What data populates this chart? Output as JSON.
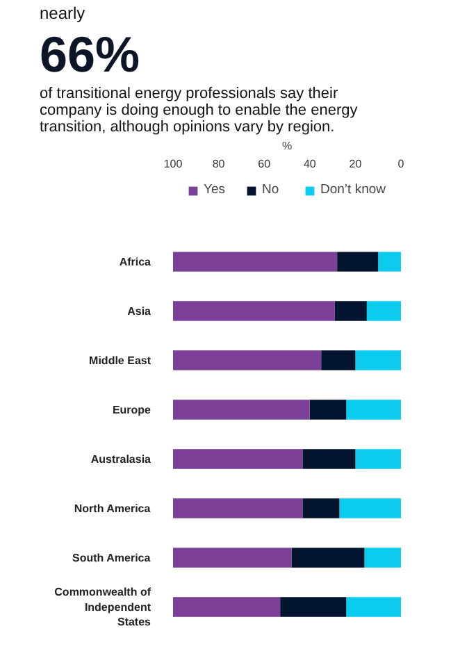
{
  "chart_data": {
    "type": "bar",
    "orientation": "horizontal",
    "stacked": true,
    "annotations": [
      "nearly"
    ],
    "title": "66%",
    "subtitle": "of transitional energy professionals say their company is doing enough to enable the energy transition, although opinions vary by region.",
    "xlabel": "%",
    "categories": [
      "Africa",
      "Asia",
      "Middle East",
      "Europe",
      "Australasia",
      "North America",
      "South America",
      "Commonwealth of Independent States"
    ],
    "series": [
      {
        "name": "Don’t know",
        "color": "#0bcbef",
        "values": [
          10,
          15,
          20,
          24,
          20,
          27,
          16,
          24
        ]
      },
      {
        "name": "No",
        "color": "#03142e",
        "values": [
          18,
          14,
          15,
          16,
          23,
          16,
          32,
          29
        ]
      },
      {
        "name": "Yes",
        "color": "#7b3f98",
        "values": [
          72,
          71,
          65,
          60,
          57,
          57,
          52,
          47
        ]
      }
    ],
    "xlim": [
      100,
      0
    ],
    "xticks": [
      100,
      80,
      60,
      40,
      20,
      0
    ],
    "grid": false,
    "legend": "top"
  }
}
